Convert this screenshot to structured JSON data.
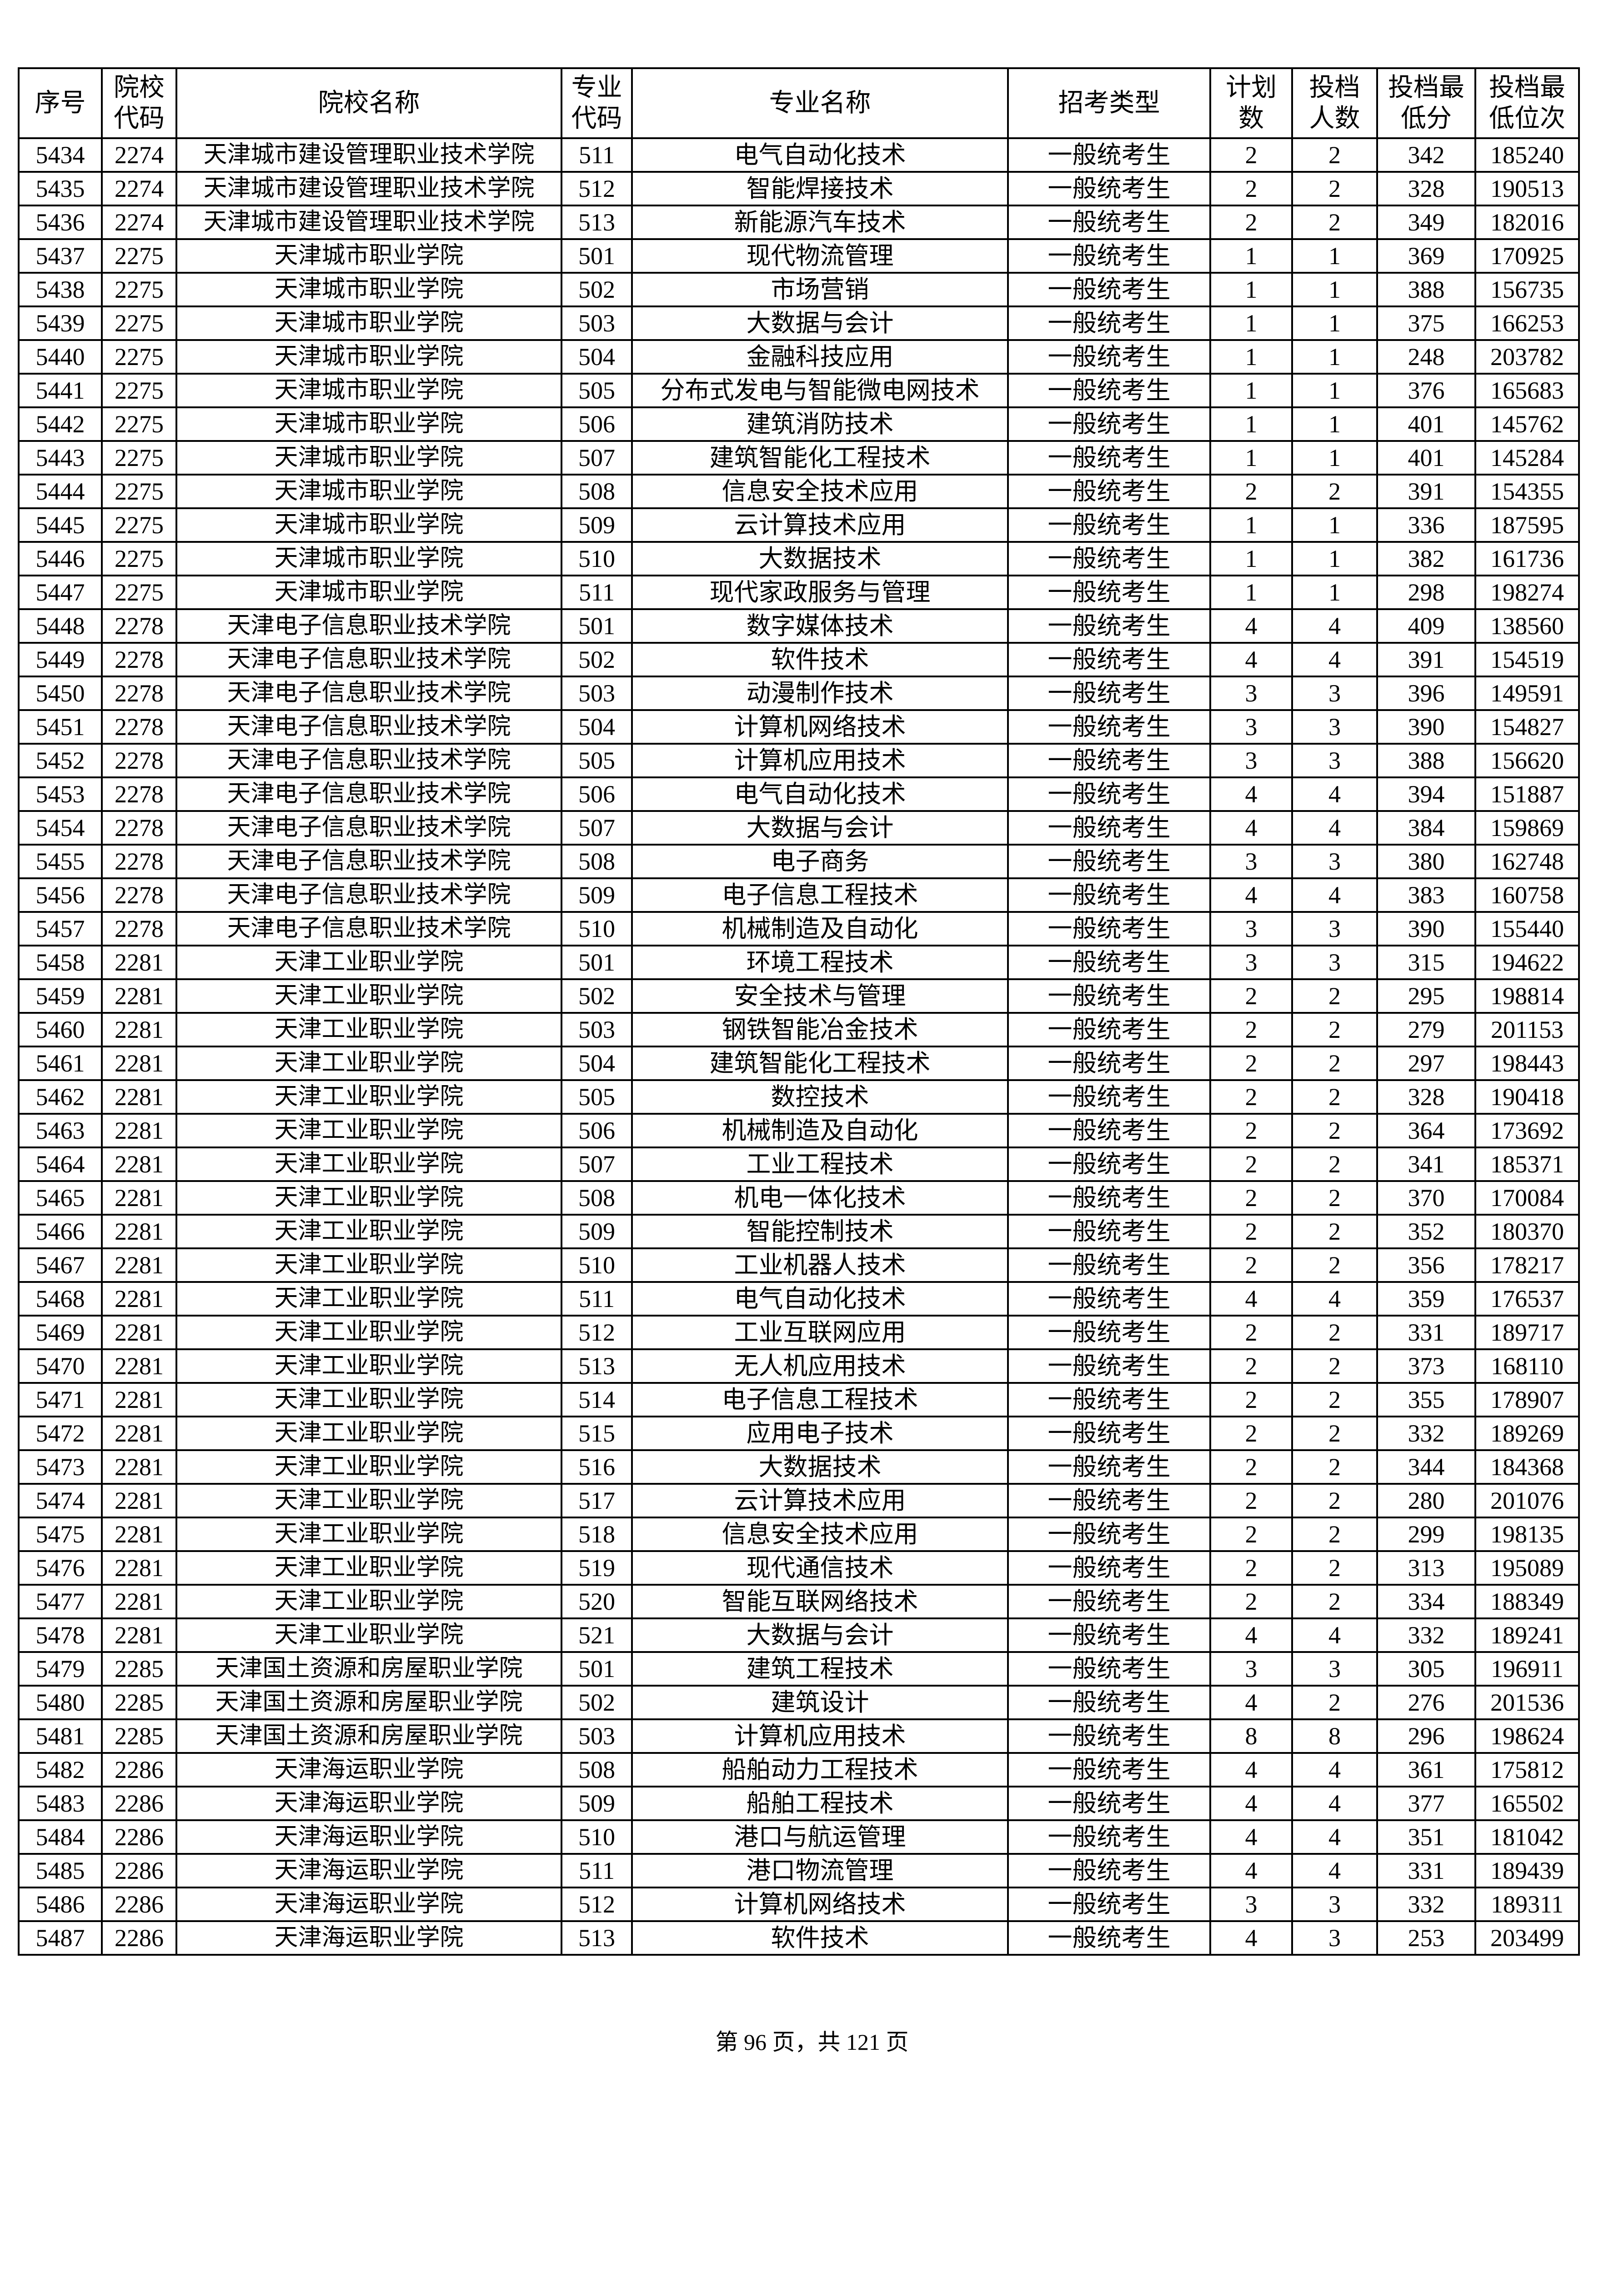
{
  "headers": [
    "序号",
    "院校代码",
    "院校名称",
    "专业代码",
    "专业名称",
    "招考类型",
    "计划数",
    "投档人数",
    "投档最低分",
    "投档最低位次"
  ],
  "rows": [
    [
      "5434",
      "2274",
      "天津城市建设管理职业技术学院",
      "511",
      "电气自动化技术",
      "一般统考生",
      "2",
      "2",
      "342",
      "185240"
    ],
    [
      "5435",
      "2274",
      "天津城市建设管理职业技术学院",
      "512",
      "智能焊接技术",
      "一般统考生",
      "2",
      "2",
      "328",
      "190513"
    ],
    [
      "5436",
      "2274",
      "天津城市建设管理职业技术学院",
      "513",
      "新能源汽车技术",
      "一般统考生",
      "2",
      "2",
      "349",
      "182016"
    ],
    [
      "5437",
      "2275",
      "天津城市职业学院",
      "501",
      "现代物流管理",
      "一般统考生",
      "1",
      "1",
      "369",
      "170925"
    ],
    [
      "5438",
      "2275",
      "天津城市职业学院",
      "502",
      "市场营销",
      "一般统考生",
      "1",
      "1",
      "388",
      "156735"
    ],
    [
      "5439",
      "2275",
      "天津城市职业学院",
      "503",
      "大数据与会计",
      "一般统考生",
      "1",
      "1",
      "375",
      "166253"
    ],
    [
      "5440",
      "2275",
      "天津城市职业学院",
      "504",
      "金融科技应用",
      "一般统考生",
      "1",
      "1",
      "248",
      "203782"
    ],
    [
      "5441",
      "2275",
      "天津城市职业学院",
      "505",
      "分布式发电与智能微电网技术",
      "一般统考生",
      "1",
      "1",
      "376",
      "165683"
    ],
    [
      "5442",
      "2275",
      "天津城市职业学院",
      "506",
      "建筑消防技术",
      "一般统考生",
      "1",
      "1",
      "401",
      "145762"
    ],
    [
      "5443",
      "2275",
      "天津城市职业学院",
      "507",
      "建筑智能化工程技术",
      "一般统考生",
      "1",
      "1",
      "401",
      "145284"
    ],
    [
      "5444",
      "2275",
      "天津城市职业学院",
      "508",
      "信息安全技术应用",
      "一般统考生",
      "2",
      "2",
      "391",
      "154355"
    ],
    [
      "5445",
      "2275",
      "天津城市职业学院",
      "509",
      "云计算技术应用",
      "一般统考生",
      "1",
      "1",
      "336",
      "187595"
    ],
    [
      "5446",
      "2275",
      "天津城市职业学院",
      "510",
      "大数据技术",
      "一般统考生",
      "1",
      "1",
      "382",
      "161736"
    ],
    [
      "5447",
      "2275",
      "天津城市职业学院",
      "511",
      "现代家政服务与管理",
      "一般统考生",
      "1",
      "1",
      "298",
      "198274"
    ],
    [
      "5448",
      "2278",
      "天津电子信息职业技术学院",
      "501",
      "数字媒体技术",
      "一般统考生",
      "4",
      "4",
      "409",
      "138560"
    ],
    [
      "5449",
      "2278",
      "天津电子信息职业技术学院",
      "502",
      "软件技术",
      "一般统考生",
      "4",
      "4",
      "391",
      "154519"
    ],
    [
      "5450",
      "2278",
      "天津电子信息职业技术学院",
      "503",
      "动漫制作技术",
      "一般统考生",
      "3",
      "3",
      "396",
      "149591"
    ],
    [
      "5451",
      "2278",
      "天津电子信息职业技术学院",
      "504",
      "计算机网络技术",
      "一般统考生",
      "3",
      "3",
      "390",
      "154827"
    ],
    [
      "5452",
      "2278",
      "天津电子信息职业技术学院",
      "505",
      "计算机应用技术",
      "一般统考生",
      "3",
      "3",
      "388",
      "156620"
    ],
    [
      "5453",
      "2278",
      "天津电子信息职业技术学院",
      "506",
      "电气自动化技术",
      "一般统考生",
      "4",
      "4",
      "394",
      "151887"
    ],
    [
      "5454",
      "2278",
      "天津电子信息职业技术学院",
      "507",
      "大数据与会计",
      "一般统考生",
      "4",
      "4",
      "384",
      "159869"
    ],
    [
      "5455",
      "2278",
      "天津电子信息职业技术学院",
      "508",
      "电子商务",
      "一般统考生",
      "3",
      "3",
      "380",
      "162748"
    ],
    [
      "5456",
      "2278",
      "天津电子信息职业技术学院",
      "509",
      "电子信息工程技术",
      "一般统考生",
      "4",
      "4",
      "383",
      "160758"
    ],
    [
      "5457",
      "2278",
      "天津电子信息职业技术学院",
      "510",
      "机械制造及自动化",
      "一般统考生",
      "3",
      "3",
      "390",
      "155440"
    ],
    [
      "5458",
      "2281",
      "天津工业职业学院",
      "501",
      "环境工程技术",
      "一般统考生",
      "3",
      "3",
      "315",
      "194622"
    ],
    [
      "5459",
      "2281",
      "天津工业职业学院",
      "502",
      "安全技术与管理",
      "一般统考生",
      "2",
      "2",
      "295",
      "198814"
    ],
    [
      "5460",
      "2281",
      "天津工业职业学院",
      "503",
      "钢铁智能冶金技术",
      "一般统考生",
      "2",
      "2",
      "279",
      "201153"
    ],
    [
      "5461",
      "2281",
      "天津工业职业学院",
      "504",
      "建筑智能化工程技术",
      "一般统考生",
      "2",
      "2",
      "297",
      "198443"
    ],
    [
      "5462",
      "2281",
      "天津工业职业学院",
      "505",
      "数控技术",
      "一般统考生",
      "2",
      "2",
      "328",
      "190418"
    ],
    [
      "5463",
      "2281",
      "天津工业职业学院",
      "506",
      "机械制造及自动化",
      "一般统考生",
      "2",
      "2",
      "364",
      "173692"
    ],
    [
      "5464",
      "2281",
      "天津工业职业学院",
      "507",
      "工业工程技术",
      "一般统考生",
      "2",
      "2",
      "341",
      "185371"
    ],
    [
      "5465",
      "2281",
      "天津工业职业学院",
      "508",
      "机电一体化技术",
      "一般统考生",
      "2",
      "2",
      "370",
      "170084"
    ],
    [
      "5466",
      "2281",
      "天津工业职业学院",
      "509",
      "智能控制技术",
      "一般统考生",
      "2",
      "2",
      "352",
      "180370"
    ],
    [
      "5467",
      "2281",
      "天津工业职业学院",
      "510",
      "工业机器人技术",
      "一般统考生",
      "2",
      "2",
      "356",
      "178217"
    ],
    [
      "5468",
      "2281",
      "天津工业职业学院",
      "511",
      "电气自动化技术",
      "一般统考生",
      "4",
      "4",
      "359",
      "176537"
    ],
    [
      "5469",
      "2281",
      "天津工业职业学院",
      "512",
      "工业互联网应用",
      "一般统考生",
      "2",
      "2",
      "331",
      "189717"
    ],
    [
      "5470",
      "2281",
      "天津工业职业学院",
      "513",
      "无人机应用技术",
      "一般统考生",
      "2",
      "2",
      "373",
      "168110"
    ],
    [
      "5471",
      "2281",
      "天津工业职业学院",
      "514",
      "电子信息工程技术",
      "一般统考生",
      "2",
      "2",
      "355",
      "178907"
    ],
    [
      "5472",
      "2281",
      "天津工业职业学院",
      "515",
      "应用电子技术",
      "一般统考生",
      "2",
      "2",
      "332",
      "189269"
    ],
    [
      "5473",
      "2281",
      "天津工业职业学院",
      "516",
      "大数据技术",
      "一般统考生",
      "2",
      "2",
      "344",
      "184368"
    ],
    [
      "5474",
      "2281",
      "天津工业职业学院",
      "517",
      "云计算技术应用",
      "一般统考生",
      "2",
      "2",
      "280",
      "201076"
    ],
    [
      "5475",
      "2281",
      "天津工业职业学院",
      "518",
      "信息安全技术应用",
      "一般统考生",
      "2",
      "2",
      "299",
      "198135"
    ],
    [
      "5476",
      "2281",
      "天津工业职业学院",
      "519",
      "现代通信技术",
      "一般统考生",
      "2",
      "2",
      "313",
      "195089"
    ],
    [
      "5477",
      "2281",
      "天津工业职业学院",
      "520",
      "智能互联网络技术",
      "一般统考生",
      "2",
      "2",
      "334",
      "188349"
    ],
    [
      "5478",
      "2281",
      "天津工业职业学院",
      "521",
      "大数据与会计",
      "一般统考生",
      "4",
      "4",
      "332",
      "189241"
    ],
    [
      "5479",
      "2285",
      "天津国土资源和房屋职业学院",
      "501",
      "建筑工程技术",
      "一般统考生",
      "3",
      "3",
      "305",
      "196911"
    ],
    [
      "5480",
      "2285",
      "天津国土资源和房屋职业学院",
      "502",
      "建筑设计",
      "一般统考生",
      "4",
      "2",
      "276",
      "201536"
    ],
    [
      "5481",
      "2285",
      "天津国土资源和房屋职业学院",
      "503",
      "计算机应用技术",
      "一般统考生",
      "8",
      "8",
      "296",
      "198624"
    ],
    [
      "5482",
      "2286",
      "天津海运职业学院",
      "508",
      "船舶动力工程技术",
      "一般统考生",
      "4",
      "4",
      "361",
      "175812"
    ],
    [
      "5483",
      "2286",
      "天津海运职业学院",
      "509",
      "船舶工程技术",
      "一般统考生",
      "4",
      "4",
      "377",
      "165502"
    ],
    [
      "5484",
      "2286",
      "天津海运职业学院",
      "510",
      "港口与航运管理",
      "一般统考生",
      "4",
      "4",
      "351",
      "181042"
    ],
    [
      "5485",
      "2286",
      "天津海运职业学院",
      "511",
      "港口物流管理",
      "一般统考生",
      "4",
      "4",
      "331",
      "189439"
    ],
    [
      "5486",
      "2286",
      "天津海运职业学院",
      "512",
      "计算机网络技术",
      "一般统考生",
      "3",
      "3",
      "332",
      "189311"
    ],
    [
      "5487",
      "2286",
      "天津海运职业学院",
      "513",
      "软件技术",
      "一般统考生",
      "4",
      "3",
      "253",
      "203499"
    ]
  ],
  "footer": "第 96 页，共 121 页"
}
